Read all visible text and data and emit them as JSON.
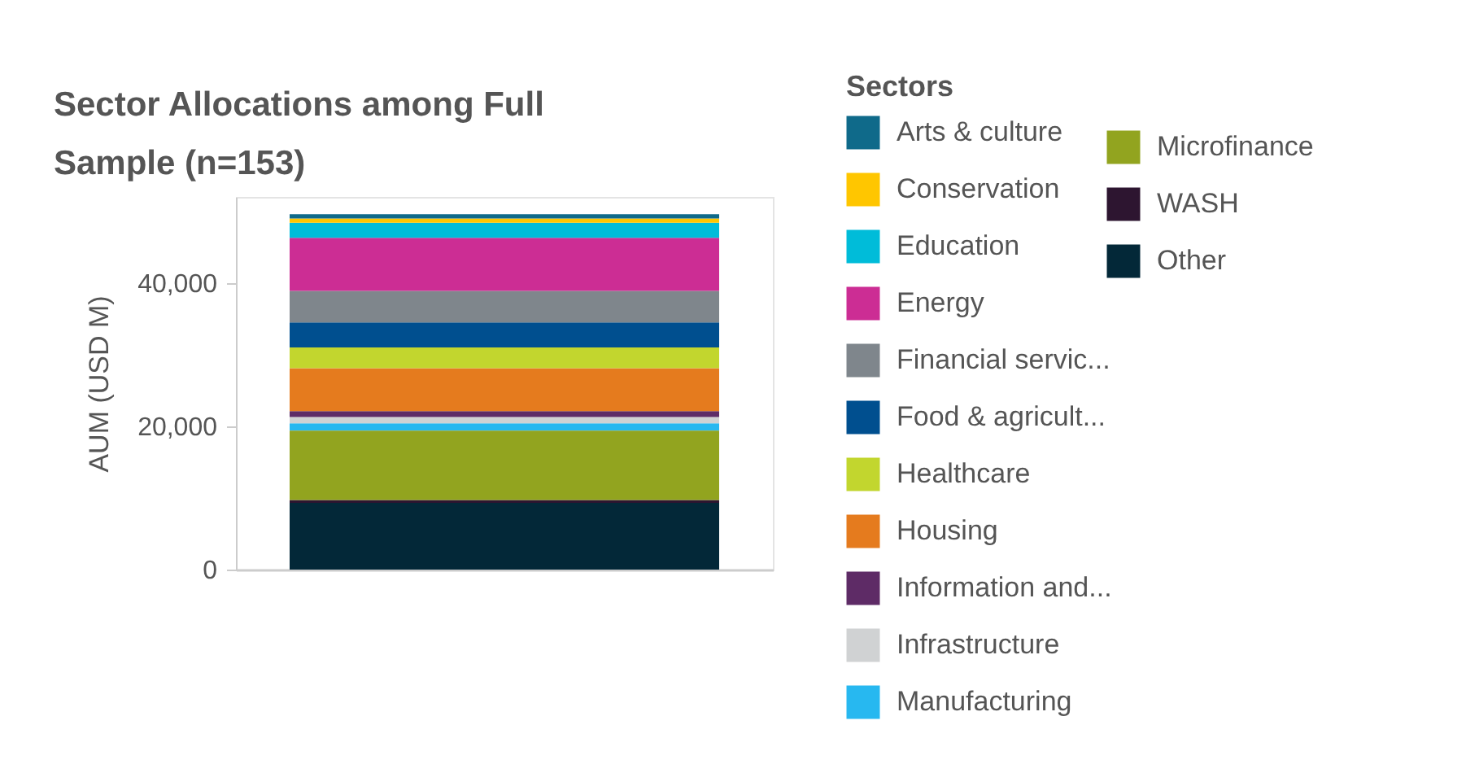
{
  "chart_data": {
    "type": "bar",
    "title": "Sector Allocations among Full Sample (n=153)",
    "ylabel": "AUM (USD M)",
    "legend_title": "Sectors",
    "categories": [
      null
    ],
    "stacked": true,
    "legend": "right",
    "grid": false,
    "ylim": [
      0,
      52000
    ],
    "yticks": [
      0,
      {
        "value": 20000,
        "label": "20,000"
      },
      {
        "value": 40000,
        "label": "40,000"
      }
    ],
    "series": [
      {
        "name": "Other",
        "color": "#032838",
        "values": [
          9300
        ]
      },
      {
        "name": "WASH",
        "color": "#2d1530",
        "values": [
          400
        ]
      },
      {
        "name": "Microfinance",
        "color": "#92a41f",
        "values": [
          9700
        ]
      },
      {
        "name": "Manufacturing",
        "color": "#27b8f0",
        "values": [
          1000
        ]
      },
      {
        "name": "Infrastructure",
        "color": "#d0d2d3",
        "values": [
          900
        ]
      },
      {
        "name": "Information and...",
        "color": "#5e2b66",
        "values": [
          800
        ]
      },
      {
        "name": "Housing",
        "color": "#e57b1e",
        "values": [
          6000
        ]
      },
      {
        "name": "Healthcare",
        "color": "#c2d62e",
        "values": [
          2900
        ]
      },
      {
        "name": "Food & agricult...",
        "color": "#004f8f",
        "values": [
          3500
        ]
      },
      {
        "name": "Financial servic...",
        "color": "#7f868c",
        "values": [
          4400
        ]
      },
      {
        "name": "Energy",
        "color": "#cc2d94",
        "values": [
          7400
        ]
      },
      {
        "name": "Education",
        "color": "#00bcd9",
        "values": [
          2100
        ]
      },
      {
        "name": "Conservation",
        "color": "#ffc600",
        "values": [
          600
        ]
      },
      {
        "name": "Arts & culture",
        "color": "#0f6a8a",
        "values": [
          600
        ]
      }
    ]
  }
}
